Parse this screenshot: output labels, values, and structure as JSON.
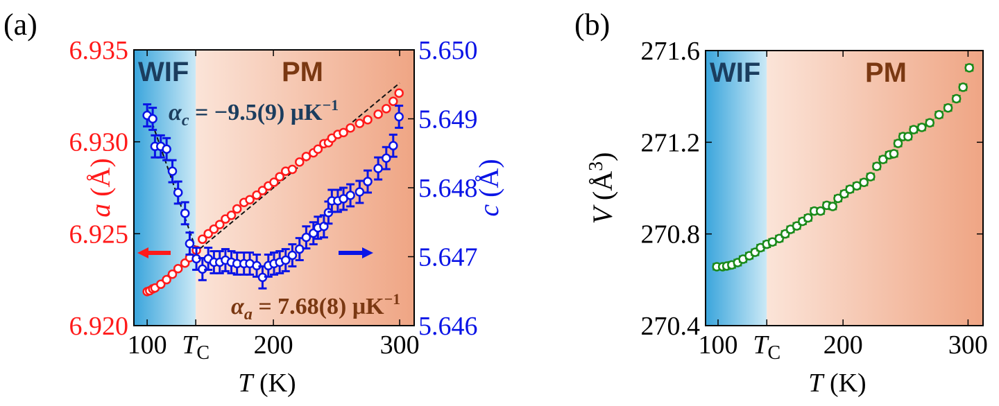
{
  "colors": {
    "red": "#ff1a1a",
    "blue": "#0a14e6",
    "green": "#1a8a1a",
    "wif_text": "#1b3d5e",
    "pm_text": "#7a3812",
    "wif_dark": "#3aa5dc",
    "wif_light": "#cbe9f6",
    "pm_light": "#fbe4d8",
    "pm_dark": "#efa584"
  },
  "chart_data": [
    {
      "panel_label": "(a)",
      "type": "scatter",
      "title": "",
      "xlabel": {
        "var": "T",
        "unit": " (K)"
      },
      "xlim": [
        89.5,
        311.5
      ],
      "xticks": [
        {
          "value": 100,
          "label": "100"
        },
        {
          "value": 138.5,
          "label": "T",
          "sub": "C"
        },
        {
          "value": 200,
          "label": "200"
        },
        {
          "value": 300,
          "label": "300"
        }
      ],
      "Tc": 138.5,
      "regions": [
        {
          "label": "WIF",
          "from": "xmin",
          "to": "Tc"
        },
        {
          "label": "PM",
          "from": "Tc",
          "to": "xmax"
        }
      ],
      "y_left": {
        "label_var": "a",
        "label_unit": " (Å)",
        "ylim": [
          6.92,
          6.935
        ],
        "ticks": [
          "6.935",
          "6.930",
          "6.925",
          "6.920"
        ]
      },
      "y_right": {
        "label_var": "c",
        "label_unit": " (Å)",
        "ylim": [
          5.646,
          5.65
        ],
        "ticks": [
          "5.650",
          "5.649",
          "5.648",
          "5.647",
          "5.646"
        ]
      },
      "series": [
        {
          "name": "a",
          "axis": "left",
          "color": "red",
          "err": 8e-05,
          "x": [
            100,
            102,
            104.4,
            106.2,
            110.8,
            115.4,
            120,
            124.5,
            130,
            133.7,
            139,
            143.8,
            148.4,
            152.9,
            157.5,
            162,
            166.7,
            171.2,
            176.7,
            181.3,
            186.8,
            191.4,
            196,
            200.5,
            205,
            209.7,
            215,
            220.7,
            226,
            231.7,
            235.3,
            240,
            243.6,
            246.3,
            251,
            255.5,
            261,
            268.3,
            274.7,
            283,
            289.4,
            294.9,
            299.5
          ],
          "y": [
            6.92185,
            6.9219,
            6.922,
            6.92205,
            6.92225,
            6.9225,
            6.9228,
            6.9231,
            6.9234,
            6.9237,
            6.9241,
            6.9247,
            6.925,
            6.92525,
            6.9255,
            6.9258,
            6.926,
            6.92635,
            6.9267,
            6.92685,
            6.9271,
            6.92735,
            6.9276,
            6.9278,
            6.9281,
            6.9284,
            6.9285,
            6.9289,
            6.9292,
            6.9294,
            6.9296,
            6.9299,
            6.92995,
            6.9302,
            6.9304,
            6.9305,
            6.93075,
            6.931,
            6.9312,
            6.9315,
            6.9318,
            6.9322,
            6.93265
          ]
        },
        {
          "name": "c",
          "axis": "right",
          "color": "blue",
          "err": 0.00016,
          "x": [
            100,
            104.4,
            106.2,
            110.8,
            115.4,
            120,
            124.5,
            130,
            133.7,
            139,
            143.8,
            148.4,
            152.9,
            157.5,
            162,
            166.7,
            171.2,
            176.7,
            181.3,
            186.8,
            191.4,
            196,
            200.5,
            205,
            209.7,
            215,
            220.7,
            226,
            231.7,
            235.3,
            240,
            243.6,
            246.3,
            251,
            255.5,
            261,
            268.3,
            274.7,
            283,
            289.4,
            294.9,
            299.5
          ],
          "y": [
            5.64905,
            5.649,
            5.6486,
            5.6486,
            5.64856,
            5.64824,
            5.64793,
            5.64763,
            5.64719,
            5.64697,
            5.64682,
            5.64697,
            5.64692,
            5.64692,
            5.64695,
            5.64692,
            5.6469,
            5.6469,
            5.6469,
            5.64687,
            5.6467,
            5.64687,
            5.6469,
            5.64692,
            5.64695,
            5.64702,
            5.64711,
            5.64728,
            5.64734,
            5.64742,
            5.64744,
            5.64764,
            5.64781,
            5.64781,
            5.64784,
            5.64789,
            5.64794,
            5.64809,
            5.64828,
            5.64843,
            5.64861,
            5.64903
          ]
        }
      ],
      "fits": [
        {
          "series": "a",
          "axis": "left",
          "x": [
            100,
            300
          ],
          "y": [
            6.9218,
            6.9332
          ]
        },
        {
          "series": "c",
          "axis": "right",
          "x": [
            100,
            139
          ],
          "y": [
            5.64915,
            5.64709
          ]
        }
      ],
      "annotations": {
        "alpha_c": {
          "sym": "α",
          "sub": "c",
          "text": " = −9.5(9) μK",
          "sup": "−1"
        },
        "alpha_a": {
          "sym": "α",
          "sub": "a",
          "text": " = 7.68(8) μK",
          "sup": "−1"
        },
        "arrow_left": "points to a-axis",
        "arrow_right": "points to c-axis"
      }
    },
    {
      "panel_label": "(b)",
      "type": "scatter",
      "title": "",
      "xlabel": {
        "var": "T",
        "unit": " (K)"
      },
      "xlim": [
        90,
        312
      ],
      "xticks": [
        {
          "value": 100,
          "label": "100"
        },
        {
          "value": 139,
          "label": "T",
          "sub": "C"
        },
        {
          "value": 200,
          "label": "200"
        },
        {
          "value": 300,
          "label": "300"
        }
      ],
      "Tc": 139,
      "regions": [
        {
          "label": "WIF",
          "from": "xmin",
          "to": "Tc"
        },
        {
          "label": "PM",
          "from": "Tc",
          "to": "xmax"
        }
      ],
      "y_left": {
        "label_var": "V",
        "label_unit": " (Å",
        "label_sup": "3",
        "label_close": ")",
        "ylim": [
          270.4,
          271.6
        ],
        "ticks": [
          "271.6",
          "271.2",
          "270.8",
          "270.4"
        ]
      },
      "series": [
        {
          "name": "V",
          "axis": "left",
          "color": "green",
          "err": 0.012,
          "x": [
            99,
            103.7,
            107,
            111,
            115.7,
            120,
            125,
            129.6,
            134,
            139,
            143.5,
            149,
            153.7,
            158,
            163,
            167.6,
            172,
            177,
            182,
            187,
            191.7,
            196,
            201,
            205.5,
            211,
            216.7,
            222,
            227,
            232,
            237,
            240.7,
            244,
            248,
            252,
            256.5,
            263,
            269.4,
            276.8,
            284,
            290.7,
            296,
            301
          ],
          "y": [
            270.657,
            270.657,
            270.66,
            270.665,
            270.675,
            270.69,
            270.705,
            270.72,
            270.74,
            270.755,
            270.765,
            270.78,
            270.8,
            270.82,
            270.835,
            270.855,
            270.87,
            270.9,
            270.9,
            270.925,
            270.92,
            270.955,
            270.975,
            270.995,
            271.01,
            271.025,
            271.05,
            271.095,
            271.125,
            271.145,
            271.15,
            271.195,
            271.225,
            271.225,
            271.255,
            271.265,
            271.285,
            271.32,
            271.35,
            271.39,
            271.44,
            271.525
          ]
        }
      ]
    }
  ]
}
